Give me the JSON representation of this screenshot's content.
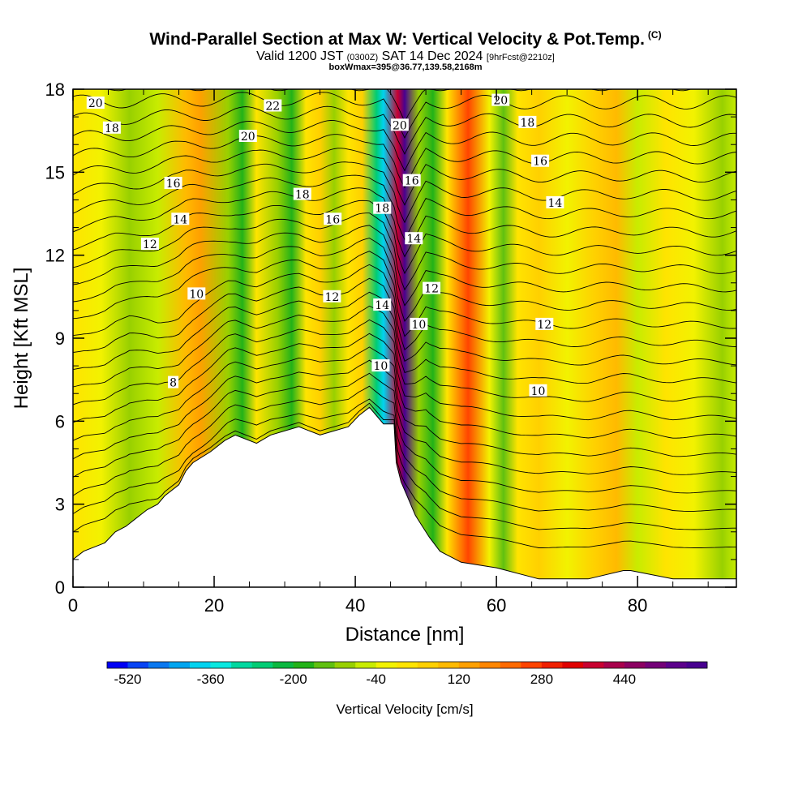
{
  "header": {
    "title": "Wind-Parallel Section at Max W: Vertical Velocity & Pot.Temp.",
    "title_units": "(C)",
    "subtitle_pre": "Valid 1200 JST",
    "subtitle_utc": "(0300Z)",
    "subtitle_date": "SAT 14 Dec 2024",
    "subtitle_fcst": "[9hrFcst@2210z]",
    "subsub": "boxWmax=395@36.77,139.58,2168m"
  },
  "chart_data": {
    "type": "heatmap",
    "title": "Wind-Parallel Section at Max W: Vertical Velocity & Pot.Temp.",
    "xlabel": "Distance [nm]",
    "ylabel": "Height [Kft MSL]",
    "xlim": [
      0,
      94
    ],
    "ylim": [
      0,
      18
    ],
    "x_ticks": [
      0,
      20,
      40,
      60,
      80
    ],
    "y_ticks": [
      0,
      3,
      6,
      9,
      12,
      15,
      18
    ],
    "colorbar": {
      "label": "Vertical Velocity [cm/s]",
      "min": -560,
      "max": 600,
      "step": 40,
      "tick_labels": [
        -520,
        -360,
        -200,
        -40,
        120,
        280,
        440
      ],
      "colors": [
        "#0000f4",
        "#0844f4",
        "#0a78f0",
        "#00a5f0",
        "#00d3f0",
        "#08e8e0",
        "#00d8a0",
        "#00cc74",
        "#0ab840",
        "#22b218",
        "#60c010",
        "#98d000",
        "#c8ec00",
        "#f2f200",
        "#ffe400",
        "#ffd000",
        "#ffba00",
        "#ffa000",
        "#ff8600",
        "#ff6a00",
        "#ff4400",
        "#f02000",
        "#e00000",
        "#c80030",
        "#a8004c",
        "#8c0062",
        "#740078",
        "#5c008c",
        "#480090"
      ]
    },
    "velocity_field_cm_s": [
      {
        "x": 0,
        "w": 20
      },
      {
        "x": 4,
        "w": -40
      },
      {
        "x": 8,
        "w": -110
      },
      {
        "x": 12,
        "w": -70
      },
      {
        "x": 16,
        "w": 80
      },
      {
        "x": 18,
        "w": 140
      },
      {
        "x": 22,
        "w": -110
      },
      {
        "x": 24,
        "w": -170
      },
      {
        "x": 26,
        "w": 30
      },
      {
        "x": 29,
        "w": -120
      },
      {
        "x": 31,
        "w": -200
      },
      {
        "x": 33,
        "w": 30
      },
      {
        "x": 35,
        "w": 40
      },
      {
        "x": 37,
        "w": -110
      },
      {
        "x": 39,
        "w": 10
      },
      {
        "x": 41,
        "w": 40
      },
      {
        "x": 43,
        "w": -280
      },
      {
        "x": 44,
        "w": -400
      },
      {
        "x": 46,
        "w": 395
      },
      {
        "x": 47,
        "w": 560
      },
      {
        "x": 49,
        "w": -110
      },
      {
        "x": 51,
        "w": -200
      },
      {
        "x": 53,
        "w": 20
      },
      {
        "x": 56,
        "w": 240
      },
      {
        "x": 59,
        "w": -30
      },
      {
        "x": 61,
        "w": -150
      },
      {
        "x": 63,
        "w": 30
      },
      {
        "x": 66,
        "w": 40
      },
      {
        "x": 70,
        "w": -40
      },
      {
        "x": 74,
        "w": 40
      },
      {
        "x": 77,
        "w": 110
      },
      {
        "x": 80,
        "w": -60
      },
      {
        "x": 84,
        "w": 30
      },
      {
        "x": 88,
        "w": -40
      },
      {
        "x": 92,
        "w": -90
      },
      {
        "x": 94,
        "w": -60
      }
    ],
    "terrain_kft": [
      {
        "x": 0,
        "h": 1.0
      },
      {
        "x": 1.5,
        "h": 1.3
      },
      {
        "x": 4.5,
        "h": 1.6
      },
      {
        "x": 6,
        "h": 2.0
      },
      {
        "x": 7.5,
        "h": 2.2
      },
      {
        "x": 9,
        "h": 2.5
      },
      {
        "x": 10.5,
        "h": 2.8
      },
      {
        "x": 12,
        "h": 3.0
      },
      {
        "x": 13,
        "h": 3.3
      },
      {
        "x": 15,
        "h": 3.7
      },
      {
        "x": 16,
        "h": 4.2
      },
      {
        "x": 17,
        "h": 4.5
      },
      {
        "x": 19.5,
        "h": 4.9
      },
      {
        "x": 21.5,
        "h": 5.3
      },
      {
        "x": 23,
        "h": 5.5
      },
      {
        "x": 26,
        "h": 5.2
      },
      {
        "x": 28,
        "h": 5.5
      },
      {
        "x": 32,
        "h": 5.8
      },
      {
        "x": 35,
        "h": 5.5
      },
      {
        "x": 39,
        "h": 5.8
      },
      {
        "x": 40.5,
        "h": 6.2
      },
      {
        "x": 42,
        "h": 6.5
      },
      {
        "x": 44,
        "h": 5.9
      },
      {
        "x": 45.5,
        "h": 5.9
      },
      {
        "x": 45.8,
        "h": 4.5
      },
      {
        "x": 46.5,
        "h": 3.8
      },
      {
        "x": 47.5,
        "h": 3.2
      },
      {
        "x": 48.5,
        "h": 2.6
      },
      {
        "x": 49.5,
        "h": 2.2
      },
      {
        "x": 50.5,
        "h": 1.8
      },
      {
        "x": 52,
        "h": 1.3
      },
      {
        "x": 55,
        "h": 0.9
      },
      {
        "x": 60,
        "h": 0.7
      },
      {
        "x": 66,
        "h": 0.3
      },
      {
        "x": 73,
        "h": 0.3
      },
      {
        "x": 78,
        "h": 0.6
      },
      {
        "x": 79,
        "h": 0.6
      },
      {
        "x": 85,
        "h": 0.3
      },
      {
        "x": 94,
        "h": 0.3
      }
    ],
    "theta_contours_C": [
      8,
      10,
      12,
      14,
      16,
      18,
      20,
      22
    ],
    "contour_labels": [
      {
        "text": "20",
        "x": 3.2,
        "y": 17.5
      },
      {
        "text": "18",
        "x": 5.5,
        "y": 16.6
      },
      {
        "text": "22",
        "x": 28.3,
        "y": 17.4
      },
      {
        "text": "20",
        "x": 24.8,
        "y": 16.3
      },
      {
        "text": "16",
        "x": 14.2,
        "y": 14.6
      },
      {
        "text": "14",
        "x": 15.2,
        "y": 13.3
      },
      {
        "text": "12",
        "x": 10.9,
        "y": 12.4
      },
      {
        "text": "10",
        "x": 17.5,
        "y": 10.6
      },
      {
        "text": "8",
        "x": 14.2,
        "y": 7.4
      },
      {
        "text": "18",
        "x": 32.5,
        "y": 14.2
      },
      {
        "text": "16",
        "x": 36.8,
        "y": 13.3
      },
      {
        "text": "12",
        "x": 36.7,
        "y": 10.5
      },
      {
        "text": "20",
        "x": 46.3,
        "y": 16.7
      },
      {
        "text": "16",
        "x": 48.0,
        "y": 14.7
      },
      {
        "text": "18",
        "x": 43.8,
        "y": 13.7
      },
      {
        "text": "14",
        "x": 48.3,
        "y": 12.6
      },
      {
        "text": "14",
        "x": 43.8,
        "y": 10.2
      },
      {
        "text": "12",
        "x": 50.8,
        "y": 10.8
      },
      {
        "text": "10",
        "x": 49.0,
        "y": 9.5
      },
      {
        "text": "10",
        "x": 43.6,
        "y": 8.0
      },
      {
        "text": "20",
        "x": 60.6,
        "y": 17.6
      },
      {
        "text": "18",
        "x": 64.4,
        "y": 16.8
      },
      {
        "text": "16",
        "x": 66.2,
        "y": 15.4
      },
      {
        "text": "14",
        "x": 68.3,
        "y": 13.9
      },
      {
        "text": "12",
        "x": 66.8,
        "y": 9.5
      },
      {
        "text": "10",
        "x": 65.9,
        "y": 7.1
      }
    ]
  }
}
